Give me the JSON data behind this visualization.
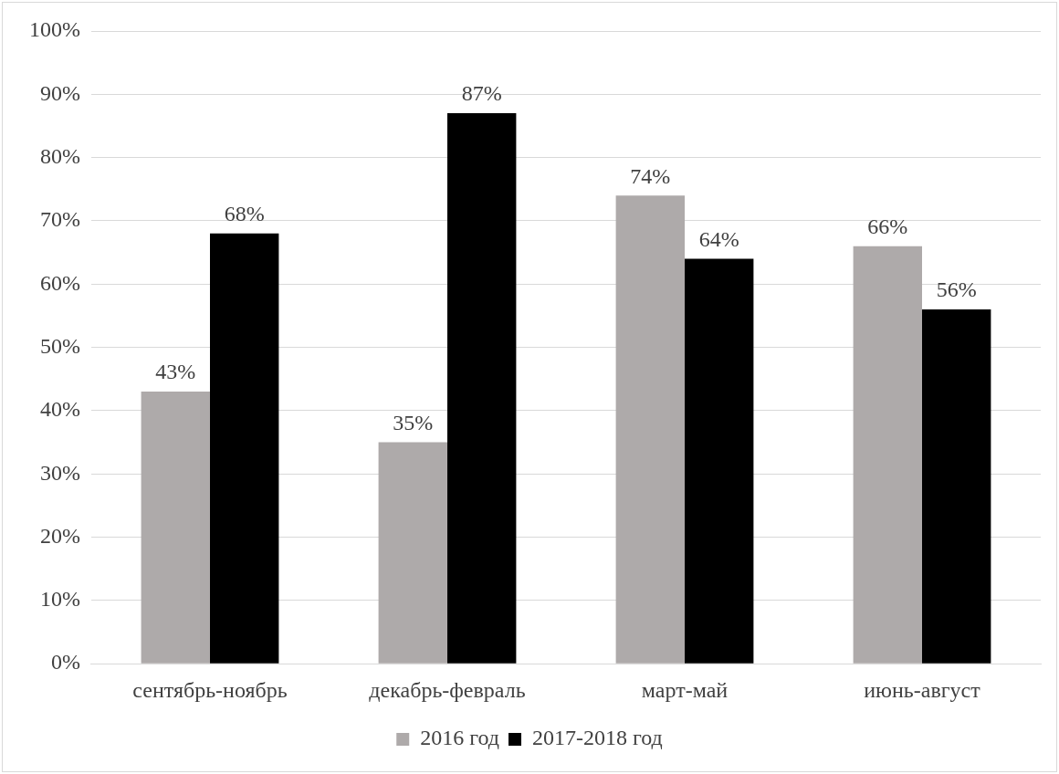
{
  "chart_data": {
    "type": "bar",
    "categories": [
      "сентябрь-ноябрь",
      "декабрь-февраль",
      "март-май",
      "июнь-август"
    ],
    "series": [
      {
        "name": "2016 год",
        "color": "#aeaaaa",
        "values": [
          43,
          35,
          74,
          66
        ],
        "value_labels": [
          "43%",
          "35%",
          "74%",
          "66%"
        ]
      },
      {
        "name": "2017-2018 год",
        "color": "#000000",
        "values": [
          68,
          87,
          64,
          56
        ],
        "value_labels": [
          "68%",
          "87%",
          "64%",
          "56%"
        ]
      }
    ],
    "ylim": [
      0,
      100
    ],
    "yticks": [
      {
        "value": 0,
        "label": "0%"
      },
      {
        "value": 10,
        "label": "10%"
      },
      {
        "value": 20,
        "label": "20%"
      },
      {
        "value": 30,
        "label": "30%"
      },
      {
        "value": 40,
        "label": "40%"
      },
      {
        "value": 50,
        "label": "50%"
      },
      {
        "value": 60,
        "label": "60%"
      },
      {
        "value": 70,
        "label": "70%"
      },
      {
        "value": 80,
        "label": "80%"
      },
      {
        "value": 90,
        "label": "90%"
      },
      {
        "value": 100,
        "label": "100%"
      }
    ],
    "grid": "y",
    "legend": "bottom"
  }
}
